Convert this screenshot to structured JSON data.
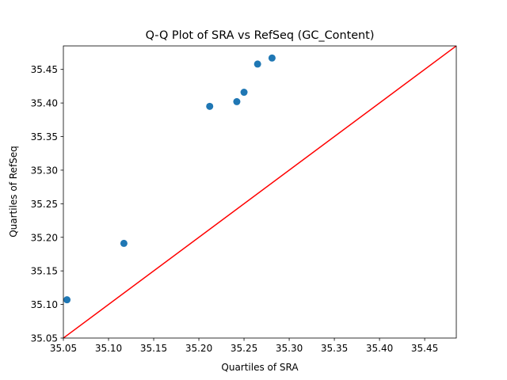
{
  "chart_data": {
    "type": "scatter",
    "title": "Q-Q Plot of SRA vs RefSeq (GC_Content)",
    "xlabel": "Quartiles of SRA",
    "ylabel": "Quartiles of RefSeq",
    "xlim": [
      35.05,
      35.485
    ],
    "ylim": [
      35.05,
      35.485
    ],
    "xticks": [
      "35.05",
      "35.10",
      "35.15",
      "35.20",
      "35.25",
      "35.30",
      "35.35",
      "35.40",
      "35.45"
    ],
    "yticks": [
      "35.05",
      "35.10",
      "35.15",
      "35.20",
      "35.25",
      "35.30",
      "35.35",
      "35.40",
      "35.45"
    ],
    "grid": false,
    "series": [
      {
        "points": [
          {
            "x": 35.054,
            "y": 35.107
          },
          {
            "x": 35.117,
            "y": 35.191
          },
          {
            "x": 35.212,
            "y": 35.395
          },
          {
            "x": 35.242,
            "y": 35.402
          },
          {
            "x": 35.25,
            "y": 35.416
          },
          {
            "x": 35.265,
            "y": 35.458
          },
          {
            "x": 35.281,
            "y": 35.467
          }
        ],
        "color": "#1f77b4"
      }
    ],
    "reference_line": {
      "from": [
        35.05,
        35.05
      ],
      "to": [
        35.485,
        35.485
      ],
      "color": "#ff0000"
    }
  }
}
